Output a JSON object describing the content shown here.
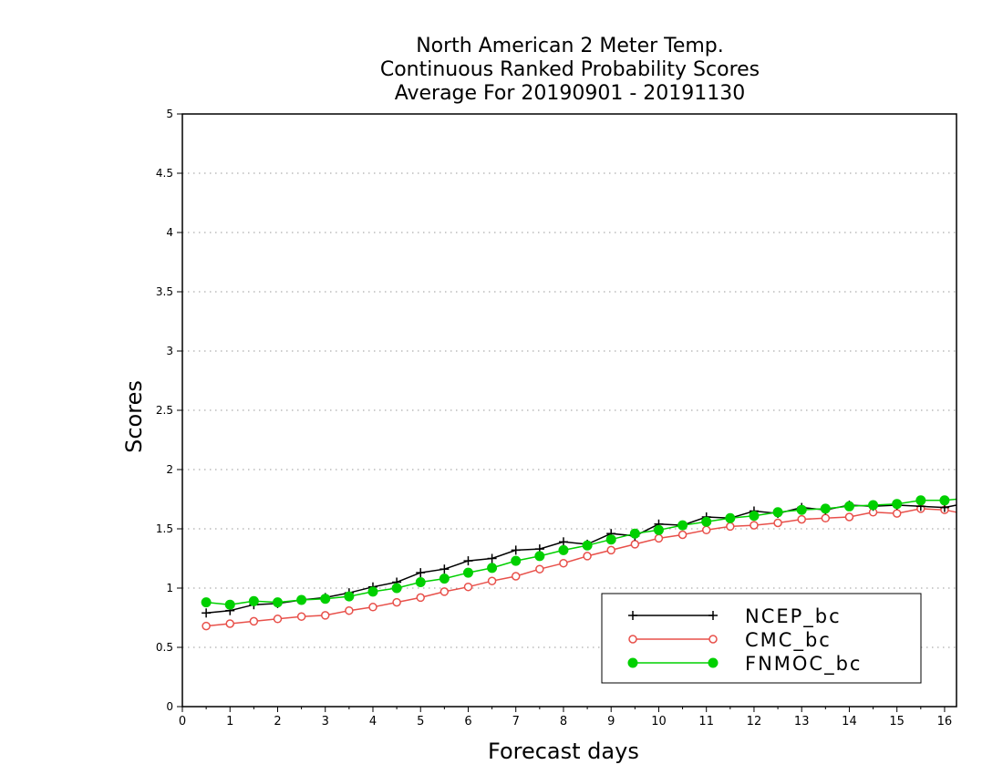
{
  "chart_data": {
    "type": "line",
    "title": [
      "North American 2 Meter Temp.",
      "Continuous Ranked Probability Scores",
      "Average For 20190901 - 20191130"
    ],
    "xlabel": "Forecast days",
    "ylabel": "Scores",
    "xlim": [
      0,
      16.25
    ],
    "ylim": [
      0,
      5
    ],
    "xticks": [
      "0",
      "1",
      "2",
      "3",
      "4",
      "5",
      "6",
      "7",
      "8",
      "9",
      "10",
      "11",
      "12",
      "13",
      "14",
      "15",
      "16"
    ],
    "yticks": [
      "0",
      "0.5",
      "1",
      "1.5",
      "2",
      "2.5",
      "3",
      "3.5",
      "4",
      "4.5",
      "5"
    ],
    "grid": "horizontal dotted",
    "legend_position": "bottom-right",
    "x": [
      0.5,
      1,
      1.5,
      2,
      2.5,
      3,
      3.5,
      4,
      4.5,
      5,
      5.5,
      6,
      6.5,
      7,
      7.5,
      8,
      8.5,
      9,
      9.5,
      10,
      10.5,
      11,
      11.5,
      12,
      12.5,
      13,
      13.5,
      14,
      14.5,
      15,
      15.5,
      16,
      16.25
    ],
    "series": [
      {
        "name": "NCEP_bc",
        "color": "#000000",
        "marker": "plus",
        "values": [
          0.79,
          0.81,
          0.86,
          0.87,
          0.9,
          0.92,
          0.96,
          1.01,
          1.05,
          1.13,
          1.16,
          1.23,
          1.25,
          1.32,
          1.33,
          1.39,
          1.37,
          1.46,
          1.44,
          1.54,
          1.53,
          1.6,
          1.59,
          1.65,
          1.63,
          1.68,
          1.66,
          1.7,
          1.69,
          1.7,
          1.69,
          1.68,
          1.7
        ]
      },
      {
        "name": "CMC_bc",
        "color": "#e8504a",
        "marker": "open-circle",
        "values": [
          0.68,
          0.7,
          0.72,
          0.74,
          0.76,
          0.77,
          0.81,
          0.84,
          0.88,
          0.92,
          0.97,
          1.01,
          1.06,
          1.1,
          1.16,
          1.21,
          1.27,
          1.32,
          1.37,
          1.42,
          1.45,
          1.49,
          1.52,
          1.53,
          1.55,
          1.58,
          1.59,
          1.6,
          1.64,
          1.63,
          1.67,
          1.66,
          1.64
        ]
      },
      {
        "name": "FNMOC_bc",
        "color": "#00d000",
        "marker": "filled-circle",
        "values": [
          0.88,
          0.86,
          0.89,
          0.88,
          0.9,
          0.91,
          0.93,
          0.97,
          1.0,
          1.05,
          1.08,
          1.13,
          1.17,
          1.23,
          1.27,
          1.32,
          1.36,
          1.41,
          1.46,
          1.49,
          1.53,
          1.56,
          1.59,
          1.61,
          1.64,
          1.66,
          1.67,
          1.69,
          1.7,
          1.71,
          1.74,
          1.74,
          1.75
        ]
      }
    ]
  }
}
